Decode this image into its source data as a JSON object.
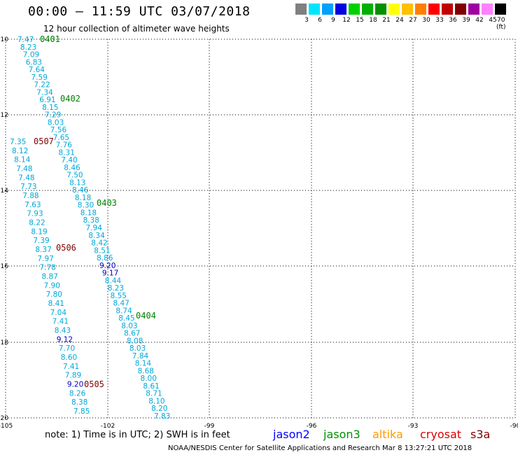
{
  "header": {
    "title": "00:00 – 11:59 UTC 03/07/2018",
    "subtitle": "12 hour collection of altimeter wave heights"
  },
  "legend": {
    "labels": [
      "3",
      "6",
      "9",
      "12",
      "15",
      "18",
      "21",
      "24",
      "27",
      "30",
      "33",
      "36",
      "39",
      "42",
      "45",
      "70 (ft)"
    ],
    "colors": [
      "#808080",
      "#00e5ff",
      "#00a0ff",
      "#0000e0",
      "#00d000",
      "#00b000",
      "#009000",
      "#ffff00",
      "#ffc000",
      "#ff8000",
      "#ff0000",
      "#c00000",
      "#800000",
      "#a000a0",
      "#ff80ff",
      "#000000"
    ]
  },
  "axes": {
    "lat_labels": [
      "-10",
      "-12",
      "-14",
      "-16",
      "-18",
      "-20"
    ],
    "lon_labels": [
      "-105",
      "-102",
      "-99",
      "-96",
      "-93",
      "-90"
    ]
  },
  "track_labels": [
    {
      "text": "0401",
      "color": "#008000"
    },
    {
      "text": "0402",
      "color": "#008000"
    },
    {
      "text": "0507",
      "color": "#800000"
    },
    {
      "text": "0403",
      "color": "#008000"
    },
    {
      "text": "0506",
      "color": "#800000"
    },
    {
      "text": "0404",
      "color": "#008000"
    },
    {
      "text": "0505",
      "color": "#800000"
    }
  ],
  "tracks": [
    {
      "color": "#00a8d8",
      "values": [
        "7.47",
        "8.23",
        "7.09",
        "6.83",
        "7.64",
        "7.59",
        "7.22",
        "7.34",
        "6.91",
        "8.15",
        "7.29",
        "8.03",
        "7.56",
        "7.65",
        "7.76",
        "8.31",
        "7.40",
        "8.46",
        "7.50",
        "8.13",
        "8.46",
        "8.18",
        "8.30",
        "8.18",
        "8.38",
        "7.94",
        "8.34",
        "8.42",
        "8.51",
        "8.86",
        "9.20",
        "9.17",
        "8.44",
        "8.23",
        "8.55",
        "8.47",
        "8.74",
        "8.45",
        "8.03",
        "8.67",
        "8.08",
        "8.03",
        "7.84",
        "8.14",
        "8.68",
        "8.00",
        "8.61",
        "8.71",
        "8.10",
        "8.20",
        "7.83"
      ]
    },
    {
      "color": "#00a8d8",
      "values": [
        "7.35",
        "8.12",
        "8.14",
        "7.48",
        "7.48",
        "7.73",
        "7.88",
        "7.63",
        "7.93",
        "8.22",
        "8.19",
        "7.39",
        "8.37",
        "7.97",
        "7.78",
        "8.87",
        "7.90",
        "7.80",
        "8.41",
        "7.04",
        "7.41",
        "8.43",
        "9.12",
        "7.70",
        "8.60",
        "7.41",
        "7.89",
        "9.20",
        "8.26",
        "8.38",
        "7.85"
      ]
    }
  ],
  "footer": {
    "note": "note: 1) Time is in UTC; 2) SWH is in feet",
    "satellites": [
      {
        "name": "jason2",
        "color": "#0000ff"
      },
      {
        "name": "jason3",
        "color": "#009000"
      },
      {
        "name": "altika",
        "color": "#ff9900"
      },
      {
        "name": "cryosat",
        "color": "#dd0000"
      },
      {
        "name": "s3a",
        "color": "#800000"
      }
    ],
    "credit": "NOAA/NESDIS Center for Satellite Applications and Research   Mar  8 13:27:21 UTC 2018"
  }
}
